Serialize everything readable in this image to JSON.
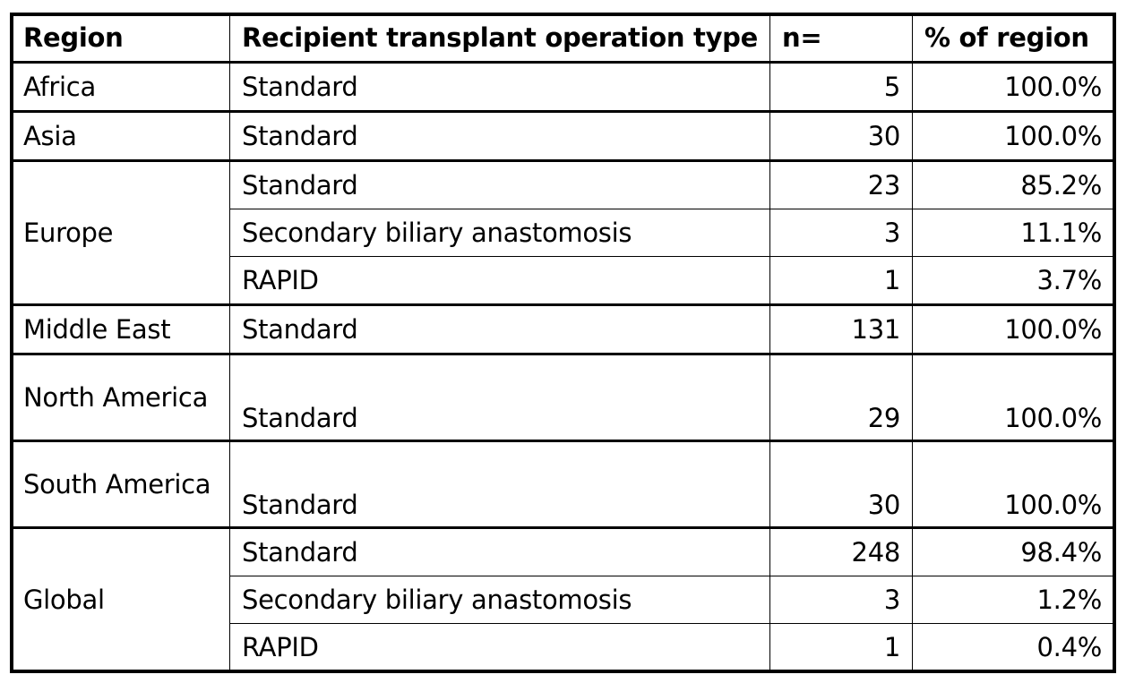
{
  "table": {
    "headers": [
      "Region",
      "Recipient transplant operation type",
      "n=",
      "% of region"
    ],
    "groups": [
      {
        "region": "Africa",
        "rows": [
          {
            "type": "Standard",
            "n": "5",
            "pct": "100.0%"
          }
        ]
      },
      {
        "region": "Asia",
        "rows": [
          {
            "type": "Standard",
            "n": "30",
            "pct": "100.0%"
          }
        ]
      },
      {
        "region": "Europe",
        "rows": [
          {
            "type": "Standard",
            "n": "23",
            "pct": "85.2%"
          },
          {
            "type": "Secondary biliary anastomosis",
            "n": "3",
            "pct": "11.1%"
          },
          {
            "type": "RAPID",
            "n": "1",
            "pct": "3.7%"
          }
        ]
      },
      {
        "region": "Middle East",
        "rows": [
          {
            "type": "Standard",
            "n": "131",
            "pct": "100.0%"
          }
        ]
      },
      {
        "region": "North America",
        "rows": [
          {
            "type": "Standard",
            "n": "29",
            "pct": "100.0%"
          }
        ]
      },
      {
        "region": "South America",
        "rows": [
          {
            "type": "Standard",
            "n": "30",
            "pct": "100.0%"
          }
        ]
      },
      {
        "region": "Global",
        "rows": [
          {
            "type": "Standard",
            "n": "248",
            "pct": "98.4%"
          },
          {
            "type": "Secondary biliary anastomosis",
            "n": "3",
            "pct": "1.2%"
          },
          {
            "type": "RAPID",
            "n": "1",
            "pct": "0.4%"
          }
        ]
      }
    ]
  }
}
